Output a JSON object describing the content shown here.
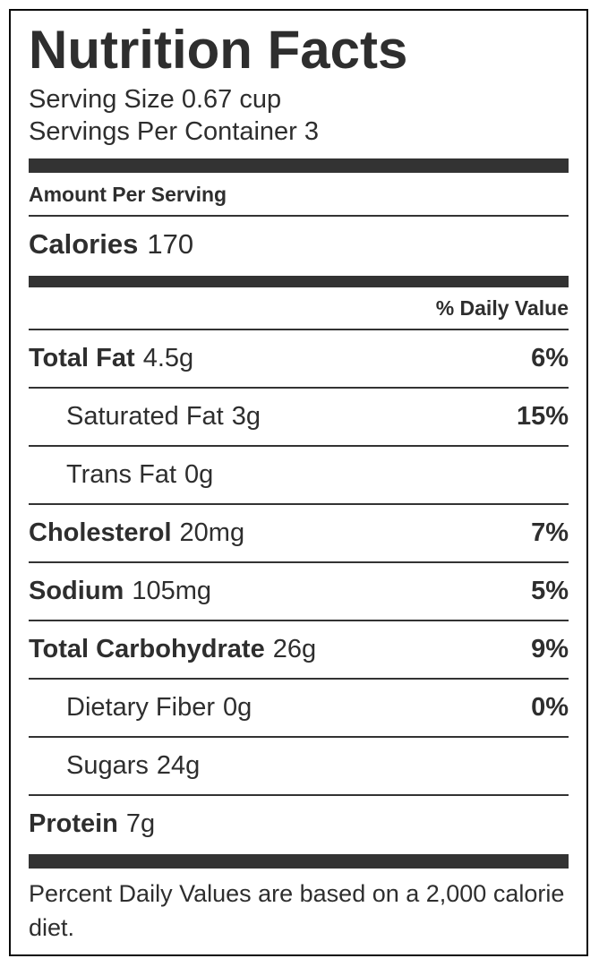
{
  "label": {
    "title": "Nutrition Facts",
    "serving_size": "Serving Size 0.67 cup",
    "servings_per_container": "Servings Per Container 3",
    "amount_per_serving": "Amount Per Serving",
    "calories_label": "Calories",
    "calories_value": "170",
    "daily_value_header": "% Daily Value",
    "footer": "Percent Daily Values are based on a 2,000 calorie diet."
  },
  "nutrients": [
    {
      "name": "Total Fat",
      "amount": "4.5g",
      "daily_value": "6%"
    },
    {
      "name": "Saturated Fat",
      "amount": "3g",
      "daily_value": "15%"
    },
    {
      "name": "Trans Fat",
      "amount": "0g",
      "daily_value": ""
    },
    {
      "name": "Cholesterol",
      "amount": "20mg",
      "daily_value": "7%"
    },
    {
      "name": "Sodium",
      "amount": "105mg",
      "daily_value": "5%"
    },
    {
      "name": "Total Carbohydrate",
      "amount": "26g",
      "daily_value": "9%"
    },
    {
      "name": "Dietary Fiber",
      "amount": "0g",
      "daily_value": "0%"
    },
    {
      "name": "Sugars",
      "amount": "24g",
      "daily_value": ""
    },
    {
      "name": "Protein",
      "amount": "7g",
      "daily_value": ""
    }
  ],
  "colors": {
    "bar": "#333333",
    "rule": "#333333",
    "text": "#2e2e2e",
    "border": "#0a0a0a",
    "background": "#ffffff"
  }
}
